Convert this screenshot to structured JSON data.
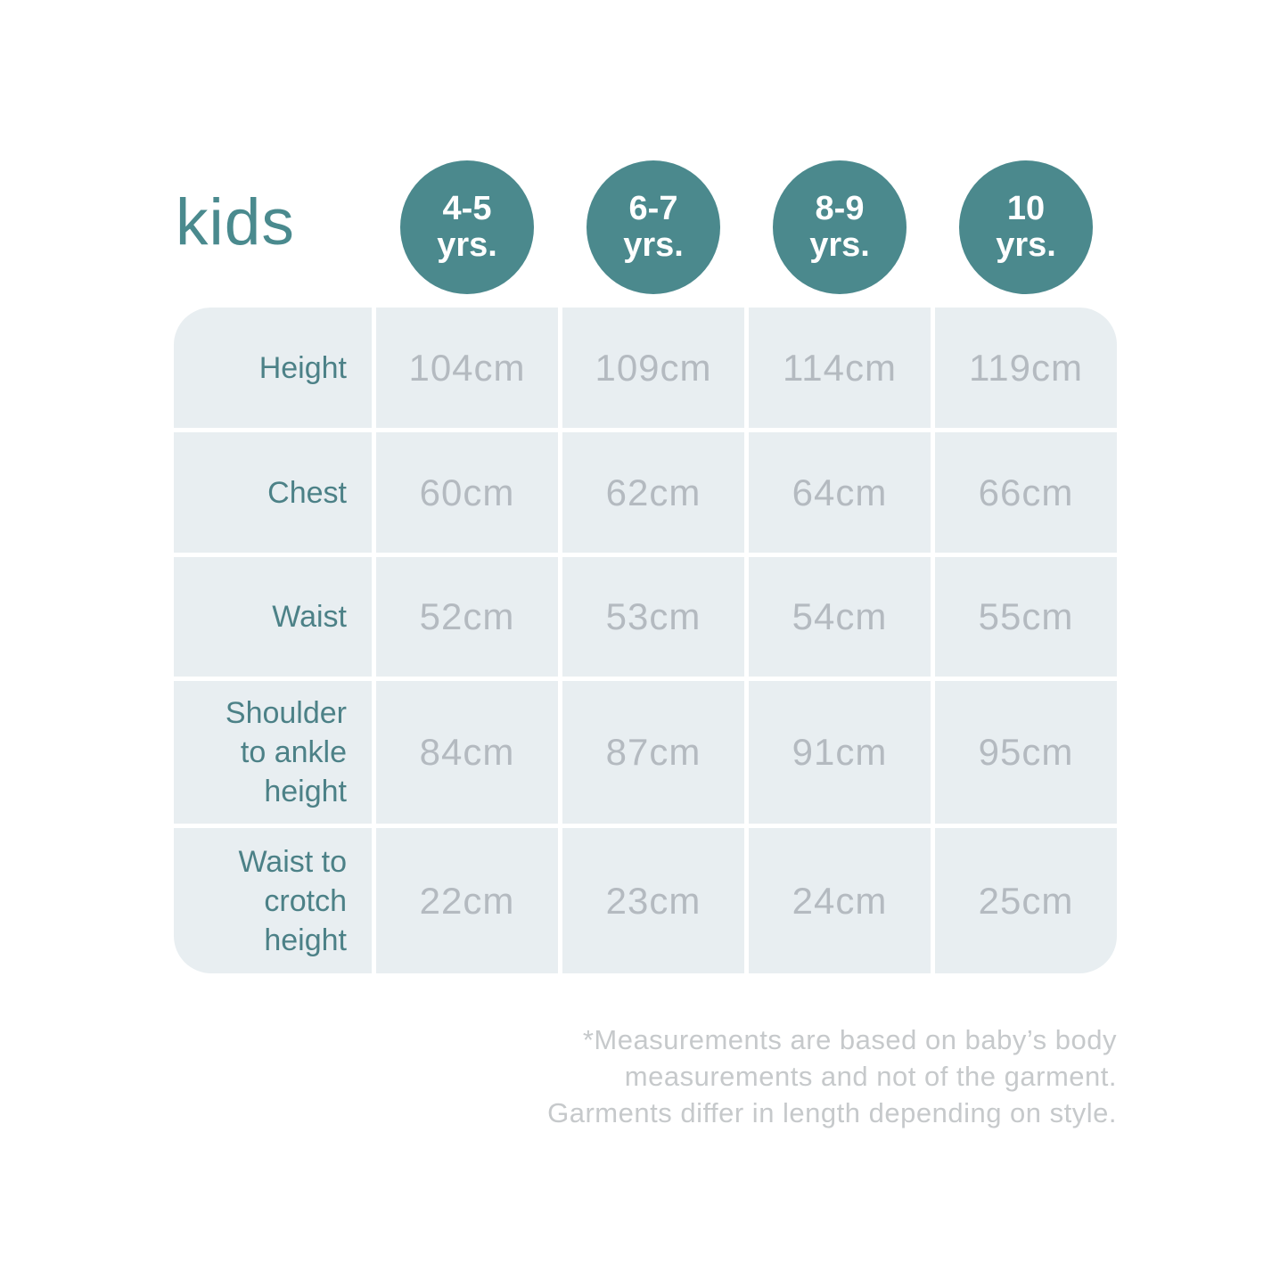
{
  "colors": {
    "teal_badge": "#4b898d",
    "teal_title": "#4a8a8e",
    "teal_label": "#4c8187",
    "table_cell_bg": "#e8eef1",
    "gridline": "#ffffff",
    "value_text": "#b4bac0",
    "footnote_text": "#c6c9cb",
    "badge_text": "#ffffff"
  },
  "chart_data": {
    "type": "table",
    "title": "kids",
    "column_headers": [
      {
        "age": "4-5",
        "unit": "yrs."
      },
      {
        "age": "6-7",
        "unit": "yrs."
      },
      {
        "age": "8-9",
        "unit": "yrs."
      },
      {
        "age": "10",
        "unit": "yrs."
      }
    ],
    "rows": [
      {
        "label": "Height",
        "values": [
          "104cm",
          "109cm",
          "114cm",
          "119cm"
        ]
      },
      {
        "label": "Chest",
        "values": [
          "60cm",
          "62cm",
          "64cm",
          "66cm"
        ]
      },
      {
        "label": "Waist",
        "values": [
          "52cm",
          "53cm",
          "54cm",
          "55cm"
        ]
      },
      {
        "label": "Shoulder to ankle height",
        "values": [
          "84cm",
          "87cm",
          "91cm",
          "95cm"
        ]
      },
      {
        "label": "Waist to crotch height",
        "values": [
          "22cm",
          "23cm",
          "24cm",
          "25cm"
        ]
      }
    ],
    "footnote_lines": [
      "*Measurements are based on baby’s body",
      "measurements and not of the garment.",
      "Garments differ in length depending on style."
    ]
  }
}
